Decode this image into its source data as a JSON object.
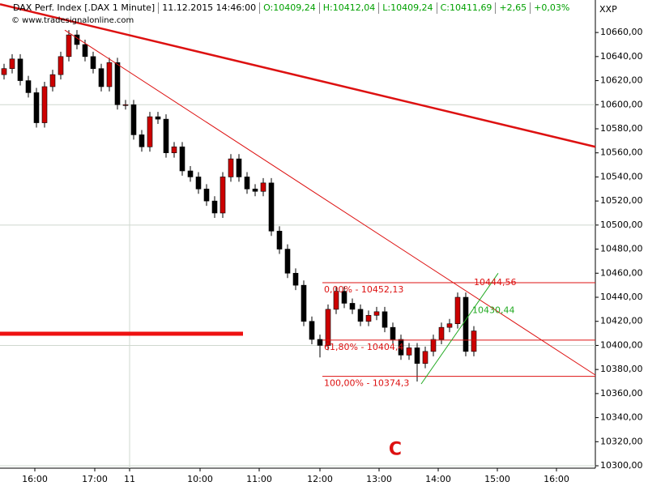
{
  "header": {
    "fields": [
      "DAX Perf. Index [.DAX  1 Minute]",
      "11.12.2015 14:46:00",
      "O:10409,24",
      "H:10412,04",
      "L:10409,24",
      "C:10411,69",
      "+2,65",
      "+0,03%"
    ],
    "copyright": "© www.tradesignalonline.com",
    "corner": "XXP"
  },
  "chart_data": {
    "type": "candlestick",
    "xlim": [
      0,
      73.5
    ],
    "ylim": [
      10298,
      10687
    ],
    "xticks": [
      {
        "value": 4.3,
        "label": "16:00"
      },
      {
        "value": 11.7,
        "label": "17:00"
      },
      {
        "value": 16,
        "label": "11"
      },
      {
        "value": 24.7,
        "label": "10:00"
      },
      {
        "value": 32,
        "label": "11:00"
      },
      {
        "value": 39.5,
        "label": "12:00"
      },
      {
        "value": 46.8,
        "label": "13:00"
      },
      {
        "value": 54.1,
        "label": "14:00"
      },
      {
        "value": 61.4,
        "label": "15:00"
      },
      {
        "value": 68.7,
        "label": "16:00"
      }
    ],
    "yticks": [
      {
        "value": 10300,
        "label": "10300,00"
      },
      {
        "value": 10320,
        "label": "10320,00"
      },
      {
        "value": 10340,
        "label": "10340,00"
      },
      {
        "value": 10360,
        "label": "10360,00"
      },
      {
        "value": 10380,
        "label": "10380,00"
      },
      {
        "value": 10400,
        "label": "10400,00"
      },
      {
        "value": 10420,
        "label": "10420,00"
      },
      {
        "value": 10440,
        "label": "10440,00"
      },
      {
        "value": 10460,
        "label": "10460,00"
      },
      {
        "value": 10480,
        "label": "10480,00"
      },
      {
        "value": 10500,
        "label": "10500,00"
      },
      {
        "value": 10520,
        "label": "10520,00"
      },
      {
        "value": 10540,
        "label": "10540,00"
      },
      {
        "value": 10560,
        "label": "10560,00"
      },
      {
        "value": 10580,
        "label": "10580,00"
      },
      {
        "value": 10600,
        "label": "10600,00"
      },
      {
        "value": 10620,
        "label": "10620,00"
      },
      {
        "value": 10640,
        "label": "10640,00"
      },
      {
        "value": 10660,
        "label": "10660,00"
      }
    ],
    "up_color": "#cc0000",
    "down_color": "#000000",
    "x": [
      0.5,
      1.5,
      2.5,
      3.5,
      4.5,
      5.5,
      6.5,
      7.5,
      8.5,
      9.5,
      10.5,
      11.5,
      12.5,
      13.5,
      14.5,
      15.5,
      16.5,
      17.5,
      18.5,
      19.5,
      20.5,
      21.5,
      22.5,
      23.5,
      24.5,
      25.5,
      26.5,
      27.5,
      28.5,
      29.5,
      30.5,
      31.5,
      32.5,
      33.5,
      34.5,
      35.5,
      36.5,
      37.5,
      38.5,
      39.5,
      40.5,
      41.5,
      42.5,
      43.5,
      44.5,
      45.5,
      46.5,
      47.5,
      48.5,
      49.5,
      50.5,
      51.5,
      52.5,
      53.5,
      54.5,
      55.5,
      56.5,
      57.5,
      58.5
    ],
    "open": [
      10625,
      10630,
      10638,
      10620,
      10610,
      10585,
      10615,
      10625,
      10640,
      10658,
      10650,
      10640,
      10630,
      10615,
      10635,
      10600,
      10600,
      10575,
      10565,
      10590,
      10588,
      10560,
      10565,
      10545,
      10540,
      10530,
      10520,
      10510,
      10540,
      10555,
      10540,
      10530,
      10528,
      10535,
      10495,
      10480,
      10460,
      10450,
      10420,
      10405,
      10400,
      10430,
      10445,
      10435,
      10430,
      10420,
      10425,
      10428,
      10415,
      10405,
      10392,
      10398,
      10385,
      10395,
      10405,
      10415,
      10418,
      10440,
      10395
    ],
    "high": [
      10634,
      10642,
      10642,
      10624,
      10614,
      10619,
      10629,
      10644,
      10662,
      10662,
      10654,
      10644,
      10634,
      10639,
      10639,
      10604,
      10604,
      10579,
      10594,
      10594,
      10592,
      10569,
      10569,
      10549,
      10544,
      10534,
      10524,
      10544,
      10559,
      10559,
      10544,
      10534,
      10539,
      10539,
      10499,
      10484,
      10464,
      10454,
      10424,
      10409,
      10434,
      10449,
      10449,
      10439,
      10434,
      10429,
      10432,
      10432,
      10419,
      10409,
      10402,
      10402,
      10399,
      10409,
      10419,
      10422,
      10444,
      10444,
      10416
    ],
    "low": [
      10621,
      10626,
      10616,
      10606,
      10581,
      10581,
      10611,
      10621,
      10636,
      10646,
      10636,
      10626,
      10611,
      10611,
      10596,
      10596,
      10571,
      10561,
      10561,
      10584,
      10556,
      10556,
      10541,
      10536,
      10526,
      10516,
      10506,
      10506,
      10536,
      10536,
      10526,
      10524,
      10524,
      10491,
      10476,
      10456,
      10446,
      10416,
      10401,
      10390,
      10396,
      10426,
      10431,
      10426,
      10416,
      10416,
      10421,
      10411,
      10401,
      10388,
      10388,
      10370,
      10381,
      10391,
      10401,
      10411,
      10414,
      10391,
      10391
    ],
    "close": [
      10630,
      10638,
      10620,
      10610,
      10585,
      10615,
      10625,
      10640,
      10658,
      10650,
      10640,
      10630,
      10615,
      10635,
      10600,
      10600,
      10575,
      10565,
      10590,
      10588,
      10560,
      10565,
      10545,
      10540,
      10530,
      10520,
      10510,
      10540,
      10555,
      10540,
      10530,
      10528,
      10535,
      10495,
      10480,
      10460,
      10450,
      10420,
      10405,
      10400,
      10430,
      10445,
      10435,
      10430,
      10420,
      10425,
      10428,
      10415,
      10405,
      10392,
      10398,
      10385,
      10395,
      10405,
      10415,
      10418,
      10440,
      10395,
      10412
    ],
    "fib_levels": [
      {
        "label": "0,00% - 10452,13",
        "value": 10452.13
      },
      {
        "label": "61,80% - 10404,4",
        "value": 10404.4
      },
      {
        "label": "100,00% - 10374,3",
        "value": 10374.3
      }
    ],
    "fib_start": 39.8,
    "trendlines": [
      {
        "x": [
          0,
          73.5
        ],
        "y": [
          10683.5,
          10565
        ],
        "color": "#dd1111",
        "width": 2.5
      },
      {
        "x": [
          8,
          73.5
        ],
        "y": [
          10662,
          10375.4
        ],
        "color": "#dd1111",
        "width": 1
      },
      {
        "x": [
          52,
          61.5
        ],
        "y": [
          10368,
          10460
        ],
        "color": "#22aa22",
        "width": 1
      },
      {
        "x": [
          0,
          30
        ],
        "y": [
          10409.7,
          10409.7
        ],
        "color": "#ee1111",
        "width": 5
      }
    ],
    "annotations": [
      {
        "text": "10444,56",
        "x": 58.5,
        "y": 10452,
        "color": "#dd1111"
      },
      {
        "text": "10430,44",
        "x": 58.3,
        "y": 10429,
        "color": "#22aa22"
      }
    ],
    "wave_label": {
      "text": "C",
      "x": 48.8,
      "y": 10313,
      "color": "#dd1111"
    }
  }
}
